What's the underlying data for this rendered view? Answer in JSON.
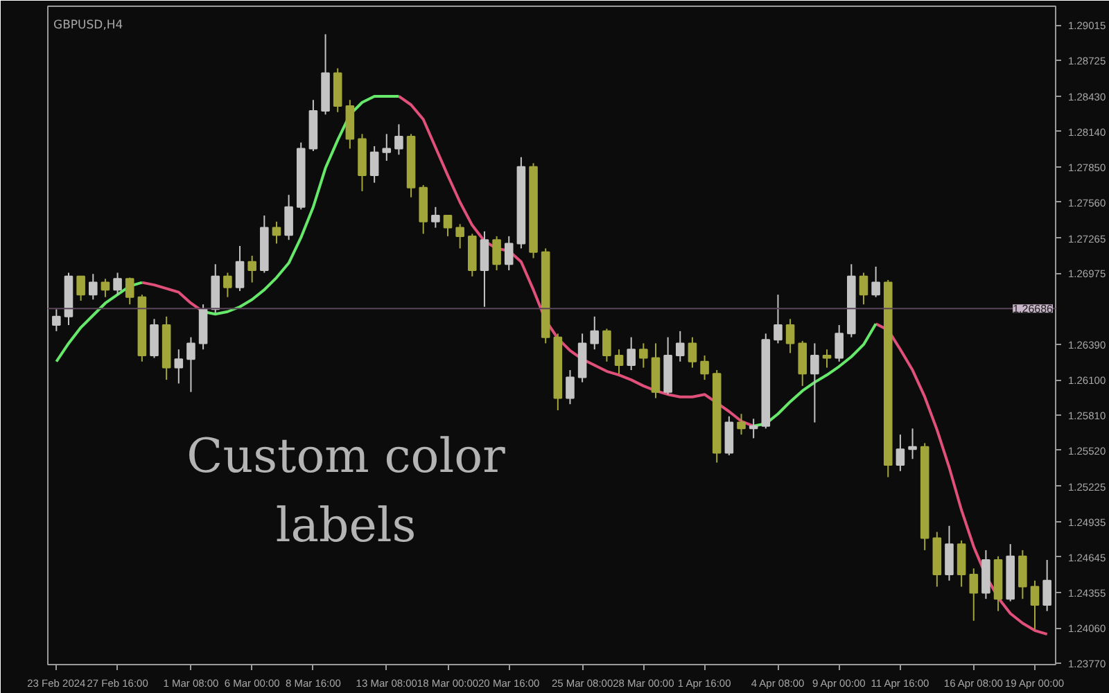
{
  "chart_data": {
    "type": "candlestick",
    "title": "GBPUSD,H4",
    "annotations": [
      "Custom color\nlabels"
    ],
    "categories": [
      "23 Feb 2024",
      null,
      null,
      null,
      null,
      "27 Feb 16:00",
      null,
      null,
      null,
      null,
      null,
      "1 Mar 08:00",
      null,
      null,
      null,
      null,
      "6 Mar 00:00",
      null,
      null,
      null,
      null,
      "8 Mar 16:00",
      null,
      null,
      null,
      null,
      null,
      "13 Mar 08:00",
      null,
      null,
      null,
      null,
      "18 Mar 00:00",
      null,
      null,
      null,
      null,
      "20 Mar 16:00",
      null,
      null,
      null,
      null,
      null,
      "25 Mar 08:00",
      null,
      null,
      null,
      null,
      "28 Mar 00:00",
      null,
      null,
      null,
      null,
      "1 Apr 16:00",
      null,
      null,
      null,
      null,
      null,
      "4 Apr 08:00",
      null,
      null,
      null,
      null,
      "9 Apr 00:00",
      null,
      null,
      null,
      null,
      "11 Apr 16:00",
      null,
      null,
      null,
      null,
      null,
      "16 Apr 08:00",
      null,
      null,
      null,
      null,
      "19 Apr 00:00",
      null
    ],
    "ohlc": [
      [
        1.2655,
        1.2668,
        1.265,
        1.2662
      ],
      [
        1.2662,
        1.2698,
        1.2655,
        1.2695
      ],
      [
        1.2695,
        1.2695,
        1.2675,
        1.268
      ],
      [
        1.268,
        1.2697,
        1.2676,
        1.269
      ],
      [
        1.269,
        1.2693,
        1.2678,
        1.2684
      ],
      [
        1.2684,
        1.2698,
        1.268,
        1.2693
      ],
      [
        1.2693,
        1.2694,
        1.2672,
        1.2678
      ],
      [
        1.2678,
        1.268,
        1.2625,
        1.263
      ],
      [
        1.263,
        1.266,
        1.2628,
        1.2655
      ],
      [
        1.2655,
        1.2662,
        1.261,
        1.262
      ],
      [
        1.262,
        1.2635,
        1.2607,
        1.2627
      ],
      [
        1.2627,
        1.2645,
        1.26,
        1.264
      ],
      [
        1.264,
        1.2672,
        1.2635,
        1.2668
      ],
      [
        1.2668,
        1.2705,
        1.2665,
        1.2695
      ],
      [
        1.2695,
        1.2698,
        1.2678,
        1.2686
      ],
      [
        1.2686,
        1.272,
        1.2683,
        1.2707
      ],
      [
        1.2707,
        1.2712,
        1.269,
        1.27
      ],
      [
        1.27,
        1.2745,
        1.2698,
        1.2735
      ],
      [
        1.2735,
        1.274,
        1.2722,
        1.2729
      ],
      [
        1.2729,
        1.2762,
        1.2725,
        1.2752
      ],
      [
        1.2752,
        1.2805,
        1.275,
        1.28
      ],
      [
        1.28,
        1.284,
        1.2798,
        1.2831
      ],
      [
        1.2831,
        1.2894,
        1.2828,
        1.2862
      ],
      [
        1.2862,
        1.2866,
        1.283,
        1.2835
      ],
      [
        1.2835,
        1.284,
        1.28,
        1.2808
      ],
      [
        1.2808,
        1.2812,
        1.2765,
        1.2778
      ],
      [
        1.2778,
        1.2802,
        1.2772,
        1.2797
      ],
      [
        1.2797,
        1.2812,
        1.279,
        1.28
      ],
      [
        1.28,
        1.282,
        1.2795,
        1.281
      ],
      [
        1.281,
        1.2812,
        1.276,
        1.2768
      ],
      [
        1.2768,
        1.277,
        1.273,
        1.274
      ],
      [
        1.274,
        1.2752,
        1.2735,
        1.2745
      ],
      [
        1.2745,
        1.2745,
        1.2728,
        1.2735
      ],
      [
        1.2735,
        1.2738,
        1.2718,
        1.2728
      ],
      [
        1.2728,
        1.273,
        1.2695,
        1.27
      ],
      [
        1.27,
        1.2732,
        1.267,
        1.2725
      ],
      [
        1.2725,
        1.2728,
        1.27,
        1.2705
      ],
      [
        1.2705,
        1.2728,
        1.27,
        1.2722
      ],
      [
        1.2722,
        1.2793,
        1.2718,
        1.2785
      ],
      [
        1.2785,
        1.2788,
        1.271,
        1.2715
      ],
      [
        1.2715,
        1.2718,
        1.264,
        1.2645
      ],
      [
        1.2645,
        1.2648,
        1.2585,
        1.2595
      ],
      [
        1.2595,
        1.2618,
        1.259,
        1.2612
      ],
      [
        1.2612,
        1.2648,
        1.2608,
        1.264
      ],
      [
        1.264,
        1.2662,
        1.2635,
        1.265
      ],
      [
        1.265,
        1.2652,
        1.2625,
        1.263
      ],
      [
        1.263,
        1.2635,
        1.2615,
        1.2622
      ],
      [
        1.2622,
        1.2645,
        1.2618,
        1.2635
      ],
      [
        1.2635,
        1.264,
        1.262,
        1.2628
      ],
      [
        1.2628,
        1.264,
        1.2595,
        1.26
      ],
      [
        1.26,
        1.2645,
        1.2598,
        1.263
      ],
      [
        1.263,
        1.265,
        1.2625,
        1.264
      ],
      [
        1.264,
        1.2645,
        1.262,
        1.2625
      ],
      [
        1.2625,
        1.263,
        1.261,
        1.2615
      ],
      [
        1.2615,
        1.2618,
        1.2542,
        1.255
      ],
      [
        1.255,
        1.258,
        1.2548,
        1.2575
      ],
      [
        1.2575,
        1.2582,
        1.2565,
        1.257
      ],
      [
        1.257,
        1.2578,
        1.2562,
        1.2572
      ],
      [
        1.2572,
        1.2648,
        1.257,
        1.2643
      ],
      [
        1.2643,
        1.268,
        1.264,
        1.2655
      ],
      [
        1.2655,
        1.266,
        1.2632,
        1.264
      ],
      [
        1.264,
        1.2642,
        1.2605,
        1.2615
      ],
      [
        1.2615,
        1.264,
        1.2575,
        1.263
      ],
      [
        1.263,
        1.2635,
        1.262,
        1.2628
      ],
      [
        1.2628,
        1.2655,
        1.2625,
        1.2648
      ],
      [
        1.2648,
        1.2705,
        1.2645,
        1.2695
      ],
      [
        1.2695,
        1.2698,
        1.2672,
        1.268
      ],
      [
        1.268,
        1.2703,
        1.2678,
        1.269
      ],
      [
        1.269,
        1.2692,
        1.253,
        1.254
      ],
      [
        1.254,
        1.2565,
        1.2535,
        1.2553
      ],
      [
        1.2553,
        1.257,
        1.2545,
        1.2555
      ],
      [
        1.2555,
        1.2558,
        1.247,
        1.248
      ],
      [
        1.248,
        1.2485,
        1.244,
        1.245
      ],
      [
        1.245,
        1.249,
        1.2445,
        1.2475
      ],
      [
        1.2475,
        1.2478,
        1.244,
        1.245
      ],
      [
        1.245,
        1.2455,
        1.2412,
        1.2435
      ],
      [
        1.2435,
        1.247,
        1.243,
        1.2462
      ],
      [
        1.2462,
        1.2465,
        1.242,
        1.243
      ],
      [
        1.243,
        1.2475,
        1.2428,
        1.2465
      ],
      [
        1.2465,
        1.247,
        1.243,
        1.244
      ],
      [
        1.244,
        1.2445,
        1.2405,
        1.2425
      ],
      [
        1.2425,
        1.2462,
        1.242,
        1.2445
      ]
    ],
    "colors": [
      "#c4c4c4",
      "#c4c4c4",
      "#a2a63a",
      "#c4c4c4",
      "#a2a63a",
      "#c4c4c4",
      "#a2a63a",
      "#a2a63a",
      "#c4c4c4",
      "#a2a63a",
      "#c4c4c4",
      "#c4c4c4",
      "#c4c4c4",
      "#c4c4c4",
      "#a2a63a",
      "#c4c4c4",
      "#a2a63a",
      "#c4c4c4",
      "#a2a63a",
      "#c4c4c4",
      "#c4c4c4",
      "#c4c4c4",
      "#c4c4c4",
      "#a2a63a",
      "#a2a63a",
      "#a2a63a",
      "#c4c4c4",
      "#c4c4c4",
      "#c4c4c4",
      "#a2a63a",
      "#a2a63a",
      "#c4c4c4",
      "#a2a63a",
      "#a2a63a",
      "#a2a63a",
      "#c4c4c4",
      "#a2a63a",
      "#c4c4c4",
      "#c4c4c4",
      "#a2a63a",
      "#a2a63a",
      "#a2a63a",
      "#c4c4c4",
      "#c4c4c4",
      "#c4c4c4",
      "#a2a63a",
      "#a2a63a",
      "#c4c4c4",
      "#a2a63a",
      "#a2a63a",
      "#c4c4c4",
      "#c4c4c4",
      "#a2a63a",
      "#a2a63a",
      "#a2a63a",
      "#c4c4c4",
      "#a2a63a",
      "#c4c4c4",
      "#c4c4c4",
      "#c4c4c4",
      "#a2a63a",
      "#a2a63a",
      "#c4c4c4",
      "#a2a63a",
      "#c4c4c4",
      "#c4c4c4",
      "#a2a63a",
      "#c4c4c4",
      "#a2a63a",
      "#c4c4c4",
      "#c4c4c4",
      "#a2a63a",
      "#a2a63a",
      "#c4c4c4",
      "#a2a63a",
      "#a2a63a",
      "#c4c4c4",
      "#a2a63a",
      "#c4c4c4",
      "#a2a63a",
      "#a2a63a",
      "#c4c4c4"
    ],
    "series": [
      {
        "type": "line",
        "color": "#66e86a",
        "values": [
          1.2625,
          1.264,
          1.2653,
          1.2663,
          1.2673,
          1.268,
          1.2687,
          1.269,
          null,
          null,
          null,
          null,
          1.2666,
          1.2664,
          1.2666,
          1.267,
          1.2676,
          1.2684,
          1.2694,
          1.2706,
          1.2727,
          1.2752,
          1.2784,
          1.2807,
          1.2828,
          1.2838,
          1.2843,
          1.2843,
          1.2843,
          null,
          null,
          null,
          null,
          null,
          null,
          null,
          null,
          null,
          null,
          null,
          null,
          null,
          null,
          null,
          null,
          null,
          null,
          null,
          null,
          null,
          null,
          null,
          null,
          null,
          null,
          null,
          null,
          1.2572,
          1.2574,
          1.2582,
          1.2592,
          1.2601,
          1.2608,
          1.2614,
          1.2621,
          1.2629,
          1.2639,
          1.2656,
          null,
          null,
          null,
          null,
          null,
          null,
          null,
          null,
          null,
          null,
          null,
          null,
          null,
          null
        ]
      },
      {
        "type": "line",
        "color": "#e0507a",
        "values": [
          null,
          null,
          null,
          null,
          null,
          null,
          null,
          1.269,
          1.2688,
          1.2685,
          1.2682,
          1.2673,
          1.2666,
          null,
          null,
          null,
          null,
          null,
          null,
          null,
          null,
          null,
          null,
          null,
          null,
          null,
          null,
          null,
          1.2843,
          1.2836,
          1.2824,
          1.2801,
          1.2778,
          1.2756,
          1.2737,
          1.2724,
          1.2718,
          1.2716,
          1.2707,
          1.2684,
          1.2659,
          1.2644,
          1.2634,
          1.2627,
          1.2622,
          1.2617,
          1.2614,
          1.261,
          1.2605,
          1.2601,
          1.2598,
          1.2596,
          1.2596,
          1.2598,
          1.2591,
          1.2584,
          1.2576,
          1.2572,
          null,
          null,
          null,
          null,
          null,
          null,
          null,
          null,
          null,
          1.2656,
          1.2651,
          1.2635,
          1.2618,
          1.2596,
          1.2569,
          1.2538,
          1.2503,
          1.2473,
          1.2449,
          1.2431,
          1.2418,
          1.241,
          1.2404,
          1.2401
        ]
      }
    ],
    "ref_lines": [
      {
        "axis": "y",
        "value": 1.26686,
        "label": "1.26686",
        "color": "#5a4658"
      }
    ],
    "ylim": [
      1.2376,
      1.2917
    ],
    "yticks": [
      {
        "value": 1.29015,
        "label": "1.29015"
      },
      {
        "value": 1.28725,
        "label": "1.28725"
      },
      {
        "value": 1.2843,
        "label": "1.28430"
      },
      {
        "value": 1.2814,
        "label": "1.28140"
      },
      {
        "value": 1.2785,
        "label": "1.27850"
      },
      {
        "value": 1.2756,
        "label": "1.27560"
      },
      {
        "value": 1.27265,
        "label": "1.27265"
      },
      {
        "value": 1.26975,
        "label": "1.26975"
      },
      {
        "value": 1.2639,
        "label": "1.26390"
      },
      {
        "value": 1.261,
        "label": "1.26100"
      },
      {
        "value": 1.2581,
        "label": "1.25810"
      },
      {
        "value": 1.2552,
        "label": "1.25520"
      },
      {
        "value": 1.25225,
        "label": "1.25225"
      },
      {
        "value": 1.24935,
        "label": "1.24935"
      },
      {
        "value": 1.24645,
        "label": "1.24645"
      },
      {
        "value": 1.24355,
        "label": "1.24355"
      },
      {
        "value": 1.2406,
        "label": "1.24060"
      },
      {
        "value": 1.2377,
        "label": "1.23770"
      }
    ],
    "grid": false
  }
}
